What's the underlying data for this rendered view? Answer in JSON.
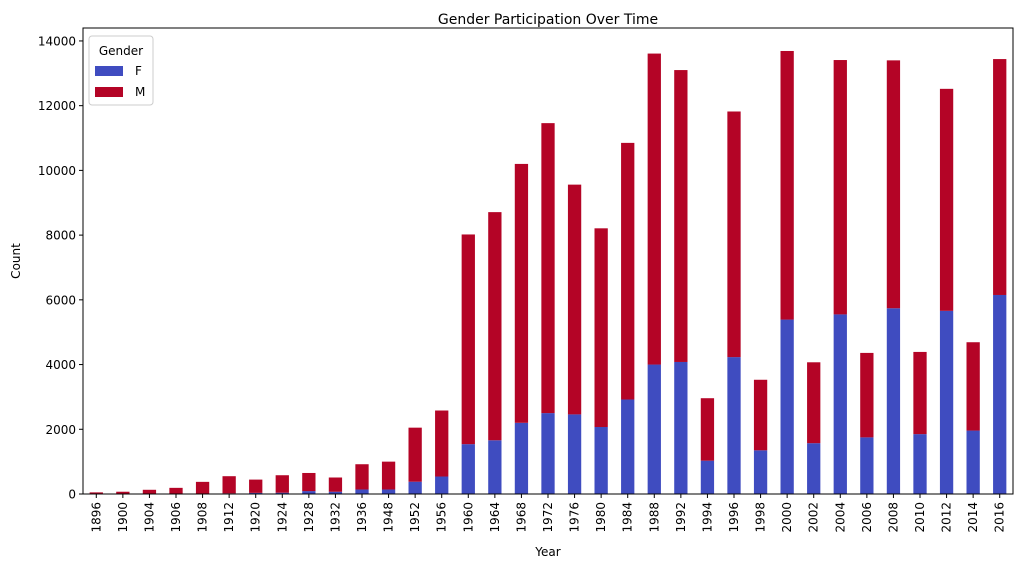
{
  "chart_data": {
    "type": "bar",
    "stacked": true,
    "title": "Gender Participation Over Time",
    "xlabel": "Year",
    "ylabel": "Count",
    "categories": [
      "1896",
      "1900",
      "1904",
      "1906",
      "1908",
      "1912",
      "1920",
      "1924",
      "1928",
      "1932",
      "1936",
      "1948",
      "1952",
      "1956",
      "1960",
      "1964",
      "1968",
      "1972",
      "1976",
      "1980",
      "1984",
      "1988",
      "1992",
      "1994",
      "1996",
      "1998",
      "2000",
      "2002",
      "2004",
      "2006",
      "2008",
      "2010",
      "2012",
      "2014",
      "2016"
    ],
    "series": [
      {
        "name": "F",
        "color": "#3f4cc0",
        "values": [
          0,
          10,
          15,
          10,
          15,
          20,
          35,
          40,
          90,
          70,
          140,
          140,
          380,
          540,
          1540,
          1660,
          2200,
          2500,
          2460,
          2070,
          2920,
          4000,
          4080,
          1030,
          4230,
          1350,
          5390,
          1570,
          5550,
          1750,
          5740,
          1850,
          5660,
          1960,
          6150
        ]
      },
      {
        "name": "M",
        "color": "#b40426",
        "values": [
          50,
          60,
          115,
          180,
          360,
          530,
          410,
          540,
          560,
          440,
          780,
          860,
          1670,
          2040,
          6480,
          7050,
          8000,
          8960,
          7100,
          6140,
          7930,
          9610,
          9020,
          1930,
          7590,
          2180,
          8300,
          2500,
          7860,
          2610,
          7660,
          2540,
          6860,
          2730,
          7290
        ]
      }
    ],
    "ylim": [
      0,
      14400
    ],
    "yticks": [
      "0",
      "2000",
      "4000",
      "6000",
      "8000",
      "10000",
      "12000",
      "14000"
    ],
    "grid": false,
    "legend": {
      "title": "Gender",
      "position": "top-left"
    }
  }
}
